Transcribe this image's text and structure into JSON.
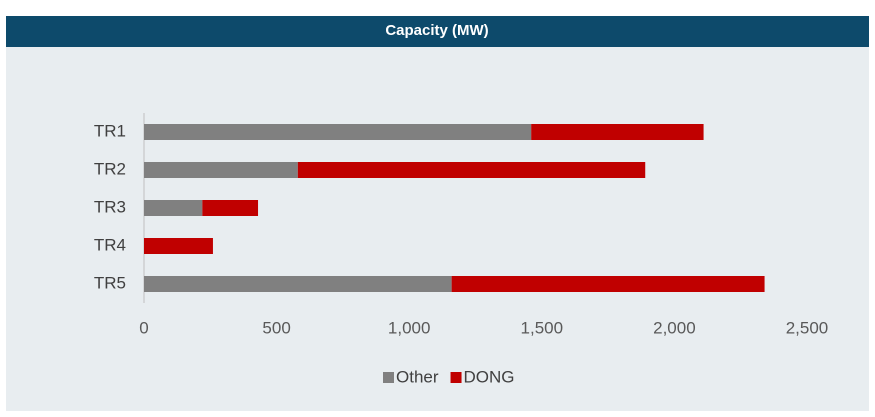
{
  "chart_data": {
    "type": "bar",
    "orientation": "horizontal",
    "stacked": true,
    "title": "Capacity (MW)",
    "categories": [
      "TR1",
      "TR2",
      "TR3",
      "TR4",
      "TR5"
    ],
    "series": [
      {
        "name": "Other",
        "color": "#808080",
        "values": [
          1460,
          580,
          220,
          0,
          1160
        ]
      },
      {
        "name": "DONG",
        "color": "#c00000",
        "values": [
          650,
          1310,
          210,
          260,
          1180
        ]
      }
    ],
    "xlim": [
      0,
      2500
    ],
    "xticks": [
      0,
      500,
      {
        "value": 1000,
        "label": "1,000"
      },
      {
        "value": 1500,
        "label": "1,500"
      },
      {
        "value": 2000,
        "label": "2,000"
      },
      {
        "value": 2500,
        "label": "2,500"
      }
    ],
    "grid": false,
    "legend": "bottom"
  }
}
